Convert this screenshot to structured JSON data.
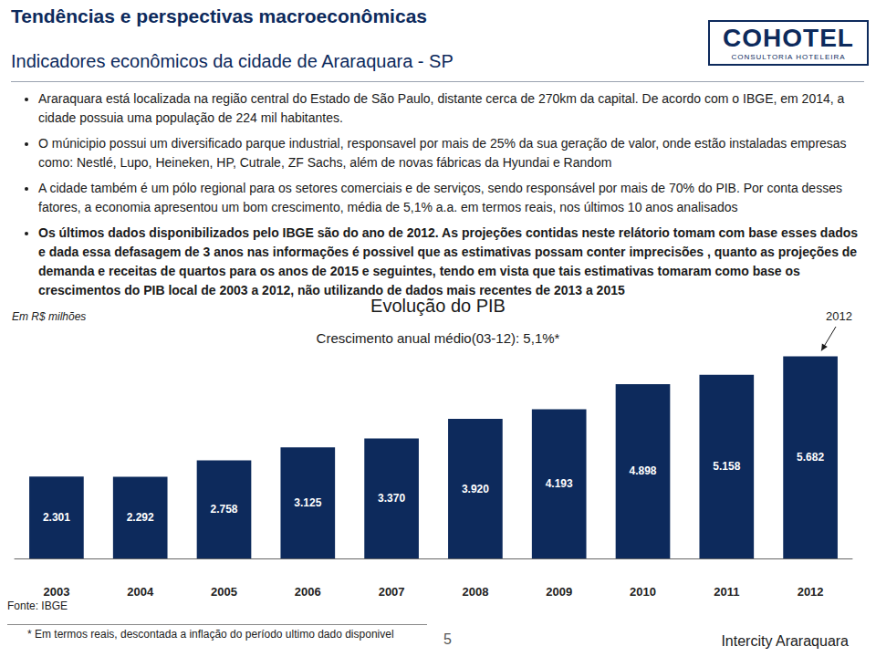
{
  "page": {
    "title": "Tendências e perspectivas macroeconômicas",
    "subtitle": "Indicadores econômicos da cidade de Araraquara - SP",
    "logo": {
      "name": "COHOTEL",
      "tagline": "CONSULTORIA HOTELEIRA"
    },
    "bullets": [
      "Araraquara está localizada na região central do Estado de São Paulo, distante cerca de 270km da capital. De acordo com o IBGE, em 2014, a cidade possuia uma população de 224 mil habitantes.",
      "O múnicipio possui um diversificado parque industrial, responsavel por mais de 25% da sua geração de valor, onde estão instaladas empresas como: Nestlé, Lupo, Heineken, HP, Cutrale, ZF Sachs, além de novas fábricas da Hyundai e Random",
      "A cidade também é um pólo regional para os setores comerciais e de serviços, sendo responsável por mais de 70% do PIB. Por conta desses fatores, a economia apresentou um bom crescimento, média de 5,1% a.a. em termos reais, nos últimos 10 anos analisados"
    ],
    "highlighted_bullet": "Os últimos dados disponibilizados pelo IBGE são do ano de 2012. As projeções contidas neste relátorio tomam com base esses dados e dada essa defasagem de 3 anos nas informações é possivel que as estimativas possam conter imprecisões , quanto as projeções de demanda e receitas de quartos para os anos de 2015 e seguintes, tendo em vista que tais estimativas tomaram como base os crescimentos do PIB local de 2003 a 2012, não utilizando de dados mais recentes de 2013 a 2015",
    "source": "Fonte: IBGE",
    "footnote": "* Em termos reais, descontada a inflação do período ultimo dado disponivel",
    "page_number": "5",
    "footer": "Intercity Araraquara"
  },
  "chart_data": {
    "type": "bar",
    "title": "Evolução do PIB",
    "subtitle": "Crescimento anual médio(03-12): 5,1%*",
    "unit_label": "Em R$ milhões",
    "annotations": [
      {
        "text": "2012",
        "category": "2012"
      }
    ],
    "categories": [
      "2003",
      "2004",
      "2005",
      "2006",
      "2007",
      "2008",
      "2009",
      "2010",
      "2011",
      "2012"
    ],
    "values": [
      2301,
      2292,
      2758,
      3125,
      3370,
      3920,
      4193,
      4898,
      5158,
      5682
    ],
    "value_labels": [
      "2.301",
      "2.292",
      "2.758",
      "3.125",
      "3.370",
      "3.920",
      "4.193",
      "4.898",
      "5.158",
      "5.682"
    ],
    "color": "#0d2a5c",
    "ylim": [
      0,
      6000
    ],
    "yticks": [
      0,
      6000
    ],
    "grid": false,
    "data_labels": true,
    "tick_labels": "x"
  }
}
